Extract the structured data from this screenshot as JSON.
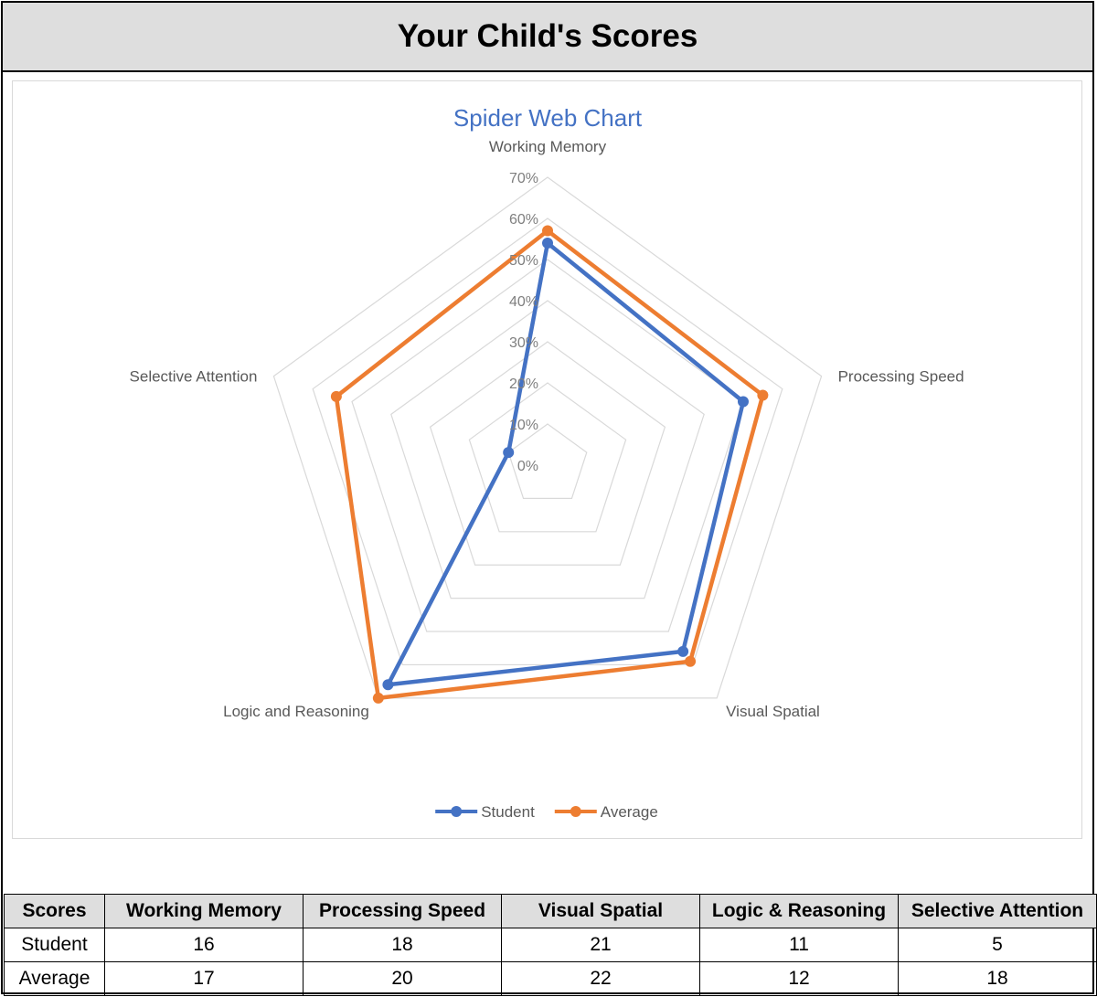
{
  "header": {
    "title": "Your Child's Scores"
  },
  "chart_data": {
    "type": "radar",
    "title": "Spider Web Chart",
    "axes": [
      "Working Memory",
      "Processing Speed",
      "Visual Spatial",
      "Logic and Reasoning",
      "Selective Attention"
    ],
    "tick_labels": [
      "0%",
      "10%",
      "20%",
      "30%",
      "40%",
      "50%",
      "60%",
      "70%"
    ],
    "rlim": [
      0,
      70
    ],
    "series": [
      {
        "name": "Student",
        "values": [
          54,
          50,
          56,
          66,
          10
        ],
        "color": "#4472c4"
      },
      {
        "name": "Average",
        "values": [
          57,
          55,
          59,
          70,
          54
        ],
        "color": "#ed7d31"
      }
    ],
    "legend_position": "bottom",
    "grid_color": "#d9d9d9"
  },
  "table": {
    "headers": [
      "Scores",
      "Working Memory",
      "Processing Speed",
      "Visual Spatial",
      "Logic & Reasoning",
      "Selective Attention"
    ],
    "rows": [
      [
        "Student",
        "16",
        "18",
        "21",
        "11",
        "5"
      ],
      [
        "Average",
        "17",
        "20",
        "22",
        "12",
        "18"
      ]
    ]
  }
}
